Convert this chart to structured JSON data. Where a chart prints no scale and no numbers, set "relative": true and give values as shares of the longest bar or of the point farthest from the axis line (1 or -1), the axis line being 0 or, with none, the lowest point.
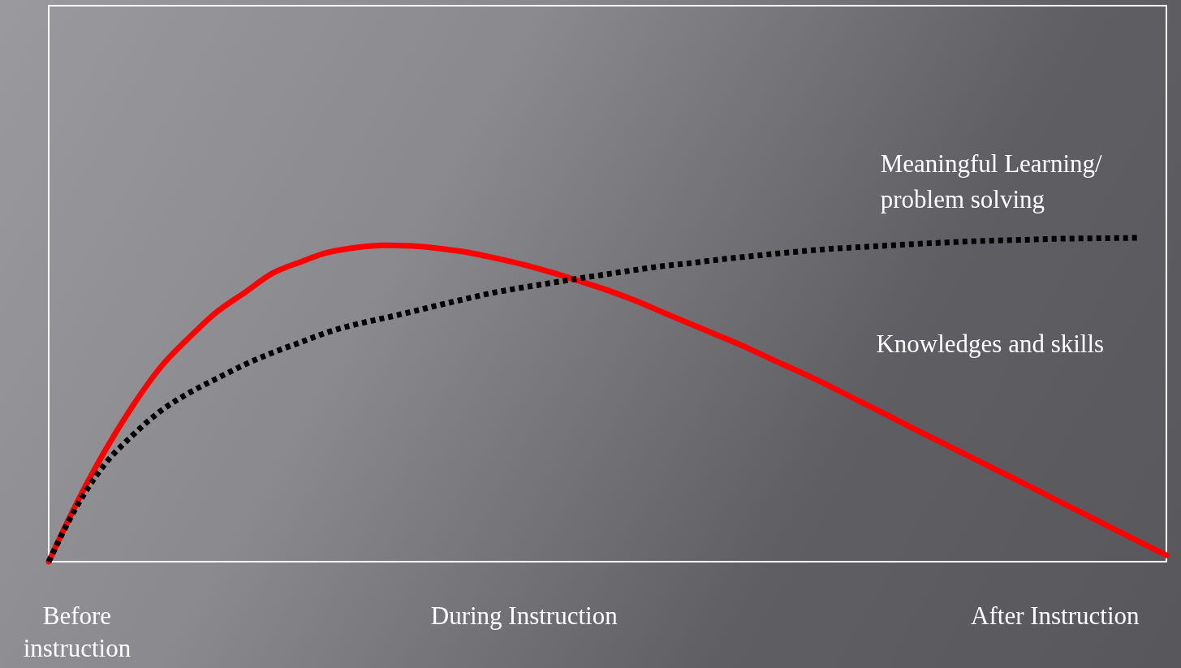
{
  "chart_data": {
    "type": "line",
    "relative": true,
    "grid": false,
    "categories": [
      null,
      "Before\ninstruction",
      null,
      null,
      null,
      null,
      null,
      null,
      null,
      null,
      null,
      null,
      null,
      null,
      null,
      null,
      null,
      "During Instruction",
      null,
      null,
      null,
      null,
      null,
      null,
      null,
      null,
      null,
      null,
      null,
      null,
      null,
      null,
      null,
      null,
      null,
      null,
      "After Instruction",
      null,
      null,
      null,
      null
    ],
    "series": [
      {
        "name": "Knowledges and skills",
        "color": "#ff0000",
        "line_style": "solid",
        "values": [
          0,
          0.18,
          0.34,
          0.48,
          0.6,
          0.69,
          0.77,
          0.83,
          0.89,
          0.925,
          0.955,
          0.97,
          0.977,
          0.975,
          0.967,
          0.955,
          0.937,
          0.917,
          0.893,
          0.866,
          0.838,
          0.806,
          0.769,
          0.733,
          0.697,
          0.66,
          0.62,
          0.581,
          0.54,
          0.496,
          0.453,
          0.409,
          0.366,
          0.323,
          0.28,
          0.237,
          0.193,
          0.15,
          0.106,
          0.063,
          0.02
        ]
      },
      {
        "name": "Meaningful Learning/\nproblem solving",
        "color": "#000000",
        "line_style": "dotted",
        "values": [
          0,
          0.17,
          0.3,
          0.39,
          0.465,
          0.52,
          0.565,
          0.608,
          0.645,
          0.677,
          0.709,
          0.733,
          0.752,
          0.772,
          0.793,
          0.813,
          0.832,
          0.847,
          0.861,
          0.875,
          0.888,
          0.901,
          0.913,
          0.922,
          0.933,
          0.942,
          0.951,
          0.959,
          0.966,
          0.971,
          0.976,
          0.981,
          0.985,
          0.989,
          0.992,
          0.994,
          0.997,
          0.998,
          0.999,
          1,
          null
        ]
      }
    ]
  }
}
